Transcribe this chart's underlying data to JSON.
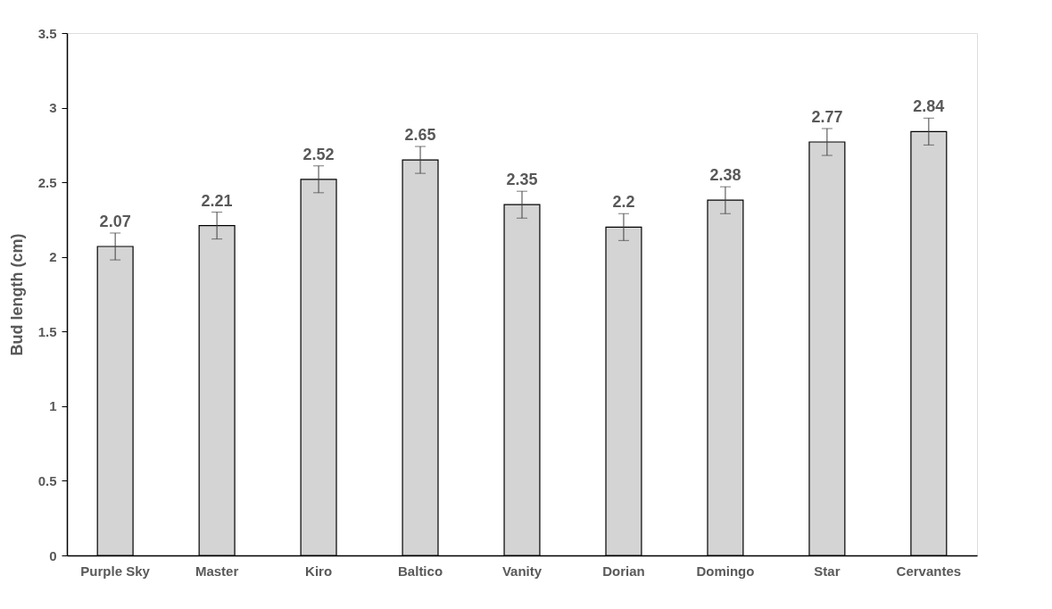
{
  "chart_data": {
    "type": "bar",
    "ylabel": "Bud length  (cm)",
    "categories": [
      "Purple Sky",
      "Master",
      "Kiro",
      "Baltico",
      "Vanity",
      "Dorian",
      "Domingo",
      "Star",
      "Cervantes"
    ],
    "values": [
      2.07,
      2.21,
      2.52,
      2.65,
      2.35,
      2.2,
      2.38,
      2.77,
      2.84
    ],
    "errors": [
      0.09,
      0.09,
      0.09,
      0.09,
      0.09,
      0.09,
      0.09,
      0.09,
      0.09
    ],
    "color": "#d4d4d4",
    "data_labels": true,
    "grid": false,
    "ylim": [
      0,
      3.5
    ],
    "yticks": [
      0,
      0.5,
      1,
      1.5,
      2,
      2.5,
      3,
      3.5
    ]
  }
}
